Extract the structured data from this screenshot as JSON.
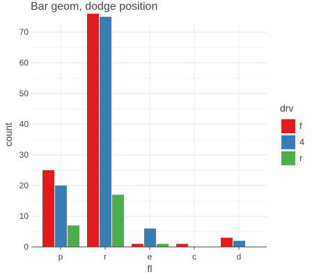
{
  "chart_data": {
    "type": "bar",
    "title": "Bar geom, dodge position",
    "xlabel": "fl",
    "ylabel": "count",
    "categories": [
      "p",
      "r",
      "e",
      "c",
      "d"
    ],
    "ylim": [
      0,
      76
    ],
    "yticks": [
      0,
      10,
      20,
      30,
      40,
      50,
      60,
      70
    ],
    "grid": true,
    "legend_title": "drv",
    "legend_position": "right",
    "series": [
      {
        "name": "f",
        "color": "#e41a1c",
        "values": [
          25,
          76,
          1,
          1,
          3
        ]
      },
      {
        "name": "4",
        "color": "#377eb8",
        "values": [
          20,
          75,
          6,
          0,
          2
        ]
      },
      {
        "name": "r",
        "color": "#4daf4a",
        "values": [
          7,
          17,
          1,
          0,
          0
        ]
      }
    ]
  }
}
